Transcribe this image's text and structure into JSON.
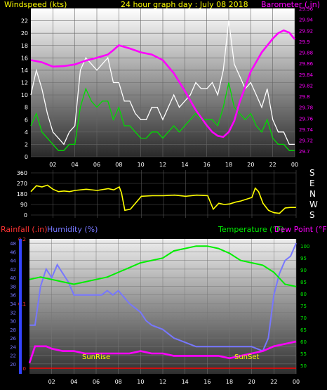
{
  "chart_data": [
    {
      "type": "line",
      "title": "24 hour graph day : July 08 2018",
      "ylabel_left": "Windspeed (kts)",
      "ylabel_right": "Barometer (.in)",
      "x_ticks": [
        "02",
        "04",
        "06",
        "08",
        "10",
        "12",
        "14",
        "16",
        "18",
        "20",
        "22",
        "00"
      ],
      "xlim": [
        0,
        24
      ],
      "y_left_ticks": [
        "0",
        "2",
        "4",
        "6",
        "8",
        "10",
        "12",
        "14",
        "16",
        "18",
        "20",
        "22"
      ],
      "ylim_left": [
        0,
        24
      ],
      "y_right_ticks": [
        "29.7",
        "29.72",
        "29.74",
        "29.76",
        "29.78",
        "29.8",
        "29.82",
        "29.84",
        "29.86",
        "29.88",
        "29.9",
        "29.92",
        "29.94",
        "29.96"
      ],
      "ylim_right": [
        29.69,
        29.96
      ],
      "colors": {
        "gust": "#ffffff",
        "wind": "#00dd00",
        "barometer": "#ff00ff",
        "title": "#ffff00"
      },
      "series": [
        {
          "name": "Windspeed (kts)",
          "axis": "left",
          "x": [
            0,
            0.5,
            1,
            1.5,
            2,
            2.5,
            3,
            3.5,
            4,
            4.5,
            5,
            5.5,
            6,
            6.5,
            7,
            7.5,
            8,
            8.5,
            9,
            9.5,
            10,
            10.5,
            11,
            11.5,
            12,
            12.5,
            13,
            13.5,
            14,
            14.5,
            15,
            15.5,
            16,
            16.5,
            17,
            17.5,
            18,
            18.5,
            19,
            19.5,
            20,
            20.5,
            21,
            21.5,
            22,
            22.5,
            23,
            23.5,
            24
          ],
          "values": [
            5,
            7,
            4,
            3,
            2,
            1,
            1,
            2,
            2,
            8,
            11,
            9,
            8,
            9,
            9,
            6,
            8,
            5,
            5,
            4,
            3,
            3,
            4,
            4,
            3,
            4,
            5,
            4,
            5,
            6,
            7,
            6,
            6,
            6,
            5,
            8,
            12,
            8,
            7,
            6,
            7,
            5,
            4,
            6,
            3,
            2,
            2,
            1,
            1
          ]
        },
        {
          "name": "Wind gust (kts)",
          "axis": "left",
          "x": [
            0,
            0.5,
            1,
            1.5,
            2,
            2.5,
            3,
            3.5,
            4,
            4.5,
            5,
            5.5,
            6,
            6.5,
            7,
            7.5,
            8,
            8.5,
            9,
            9.5,
            10,
            10.5,
            11,
            11.5,
            12,
            12.5,
            13,
            13.5,
            14,
            14.5,
            15,
            15.5,
            16,
            16.5,
            17,
            17.5,
            18,
            18.5,
            19,
            19.5,
            20,
            20.5,
            21,
            21.5,
            22,
            22.5,
            23,
            23.5,
            24
          ],
          "values": [
            10,
            14,
            11,
            7,
            4,
            3,
            2,
            4,
            5,
            14,
            16,
            15,
            14,
            15,
            16,
            12,
            12,
            9,
            9,
            7,
            6,
            6,
            8,
            8,
            6,
            8,
            10,
            8,
            9,
            10,
            12,
            11,
            11,
            12,
            10,
            14,
            22,
            15,
            13,
            11,
            12,
            10,
            8,
            11,
            6,
            4,
            4,
            2,
            2
          ]
        },
        {
          "name": "Barometer (.in)",
          "axis": "right",
          "x": [
            0,
            1,
            2,
            3,
            4,
            5,
            6,
            7,
            7.5,
            8,
            9,
            10,
            11,
            12,
            13,
            14,
            15,
            16,
            16.5,
            17,
            17.5,
            18,
            18.5,
            19,
            20,
            21,
            22,
            22.5,
            23,
            23.5,
            24
          ],
          "values": [
            29.866,
            29.862,
            29.854,
            29.855,
            29.858,
            29.865,
            29.87,
            29.876,
            29.884,
            29.893,
            29.887,
            29.88,
            29.876,
            29.866,
            29.842,
            29.81,
            29.775,
            29.747,
            29.735,
            29.728,
            29.726,
            29.735,
            29.755,
            29.79,
            29.845,
            29.88,
            29.905,
            29.915,
            29.92,
            29.916,
            29.904
          ]
        }
      ]
    },
    {
      "type": "line",
      "title": "",
      "ylabel": "",
      "y_ticks": [
        "0",
        "90",
        "180",
        "270",
        "360"
      ],
      "ylim": [
        0,
        360
      ],
      "right_labels": [
        "S",
        "E",
        "N",
        "W",
        "S"
      ],
      "xlim": [
        0,
        24
      ],
      "colors": {
        "direction": "#ffff00"
      },
      "series": [
        {
          "name": "Wind direction",
          "x": [
            0,
            0.5,
            1,
            1.5,
            2,
            2.5,
            3,
            3.5,
            4,
            5,
            6,
            7,
            7.5,
            8,
            8.2,
            8.5,
            9,
            10,
            11,
            12,
            13,
            14,
            15,
            16,
            16.5,
            17,
            17.5,
            18,
            18.5,
            19,
            20,
            20.3,
            20.6,
            21,
            21.5,
            22,
            22.5,
            23,
            23.5,
            24
          ],
          "values": [
            200,
            250,
            240,
            255,
            220,
            200,
            205,
            200,
            210,
            220,
            210,
            225,
            215,
            240,
            190,
            40,
            50,
            160,
            165,
            165,
            170,
            160,
            170,
            165,
            50,
            100,
            90,
            95,
            110,
            120,
            150,
            230,
            200,
            100,
            40,
            20,
            15,
            60,
            65,
            65
          ]
        }
      ]
    },
    {
      "type": "line",
      "title": "",
      "ylabel_left_rain": "Rainfall (.in)",
      "ylabel_left_humidity": "Humidity (%)",
      "ylabel_right_temp": "Temperature (°F)",
      "ylabel_right_dew": "Dew Point (°F)",
      "x_ticks": [
        "02",
        "04",
        "06",
        "08",
        "10",
        "12",
        "14",
        "16",
        "18",
        "20",
        "22",
        "00"
      ],
      "xlim": [
        0,
        24
      ],
      "humidity_ticks": [
        "20",
        "22",
        "24",
        "26",
        "28",
        "30",
        "32",
        "34",
        "36",
        "38",
        "40",
        "42",
        "44",
        "46",
        "48"
      ],
      "humidity_lim": [
        19,
        49
      ],
      "rain_ticks": [
        "0",
        "0.1",
        "0.2"
      ],
      "rain_lim": [
        0,
        0.2
      ],
      "temp_ticks": [
        "50",
        "55",
        "60",
        "65",
        "70",
        "75",
        "80",
        "85",
        "90",
        "95",
        "100"
      ],
      "temp_lim": [
        50,
        103
      ],
      "annotations": [
        "SunRise",
        "SunSet"
      ],
      "colors": {
        "rain": "#ff0000",
        "humidity": "#7777ff",
        "temperature": "#00ee00",
        "dewpoint": "#ff00ff",
        "annotation": "#ffff00"
      },
      "series": [
        {
          "name": "Humidity (%)",
          "axis": "humidity",
          "x": [
            0,
            0.5,
            1,
            1.5,
            2,
            2.5,
            3,
            3.5,
            4,
            5,
            6,
            6.5,
            7,
            7.5,
            8,
            9,
            10,
            10.5,
            11,
            12,
            13,
            14,
            15,
            16,
            17,
            18,
            19,
            20,
            21,
            21.5,
            22,
            22.5,
            23,
            23.5,
            24
          ],
          "values": [
            29,
            29,
            38,
            42,
            40,
            43,
            41,
            39,
            36,
            36,
            36,
            36,
            37,
            36,
            37,
            34,
            32,
            30,
            29,
            28,
            26,
            25,
            24,
            24,
            24,
            24,
            24,
            24,
            23,
            26,
            36,
            41,
            44,
            45,
            48
          ]
        },
        {
          "name": "Rainfall (.in)",
          "axis": "rain",
          "x": [
            0,
            24
          ],
          "values": [
            0,
            0
          ]
        },
        {
          "name": "Temperature (°F)",
          "axis": "temp",
          "x": [
            0,
            1,
            2,
            3,
            4,
            5,
            6,
            7,
            8,
            9,
            10,
            11,
            12,
            13,
            14,
            15,
            16,
            17,
            18,
            19,
            20,
            21,
            22,
            23,
            24
          ],
          "values": [
            86,
            87,
            86,
            85,
            84,
            85,
            86,
            87,
            89,
            91,
            93,
            94,
            95,
            98,
            99,
            100,
            100,
            99,
            97,
            94,
            93,
            92,
            89,
            84,
            83
          ]
        },
        {
          "name": "Dew Point (°F)",
          "axis": "temp",
          "x": [
            0,
            0.5,
            1,
            1.5,
            2,
            3,
            4,
            5,
            6,
            7,
            8,
            9,
            10,
            11,
            12,
            13,
            14,
            15,
            16,
            17,
            18,
            19,
            20,
            21,
            22,
            23,
            24
          ],
          "values": [
            51,
            58,
            58,
            58,
            57,
            56,
            56,
            55,
            55,
            55,
            55,
            55,
            56,
            55,
            55,
            54,
            54,
            54,
            54,
            54,
            53,
            54,
            55,
            56,
            58,
            59,
            60
          ]
        }
      ]
    }
  ]
}
